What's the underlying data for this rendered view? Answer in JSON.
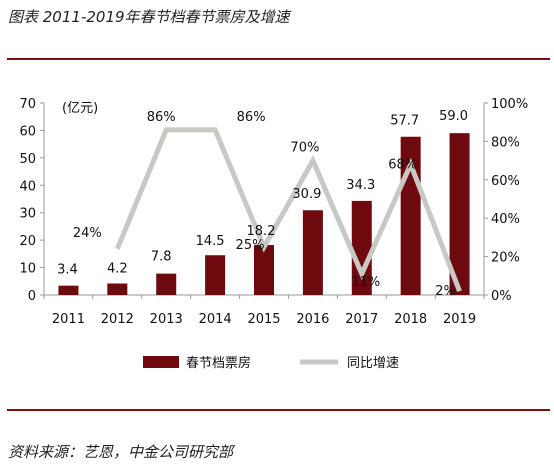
{
  "figure": {
    "caption": "图表 2011-2019年春节档春节票房及增速",
    "source": "资料来源：艺恩，中金公司研究部",
    "rule_color": "#7b0c10"
  },
  "chart_data": {
    "type": "bar",
    "categories": [
      "2011",
      "2012",
      "2013",
      "2014",
      "2015",
      "2016",
      "2017",
      "2018",
      "2019"
    ],
    "series": [
      {
        "name": "春节档票房",
        "type": "bar",
        "axis": "left",
        "color": "#6e0a0e",
        "values": [
          3.4,
          4.2,
          7.8,
          14.5,
          18.2,
          30.9,
          34.3,
          57.7,
          59.0
        ],
        "labels": [
          "3.4",
          "4.2",
          "7.8",
          "14.5",
          "18.2",
          "30.9",
          "34.3",
          "57.7",
          "59.0"
        ]
      },
      {
        "name": "同比增速",
        "type": "line",
        "axis": "right",
        "color": "#c8c8c4",
        "values": [
          null,
          24,
          86,
          86,
          25,
          70,
          11,
          68,
          2
        ],
        "labels": [
          "",
          "24%",
          "86%",
          "86%",
          "25%",
          "70%",
          "11%",
          "68%",
          "2%"
        ]
      }
    ],
    "y_left": {
      "unit_label": "(亿元)",
      "min": 0,
      "max": 70,
      "ticks": [
        0,
        10,
        20,
        30,
        40,
        50,
        60,
        70
      ]
    },
    "y_right": {
      "min": 0,
      "max": 100,
      "ticks": [
        "0%",
        "20%",
        "40%",
        "60%",
        "80%",
        "100%"
      ]
    },
    "legend_position": "bottom",
    "grid": false
  }
}
